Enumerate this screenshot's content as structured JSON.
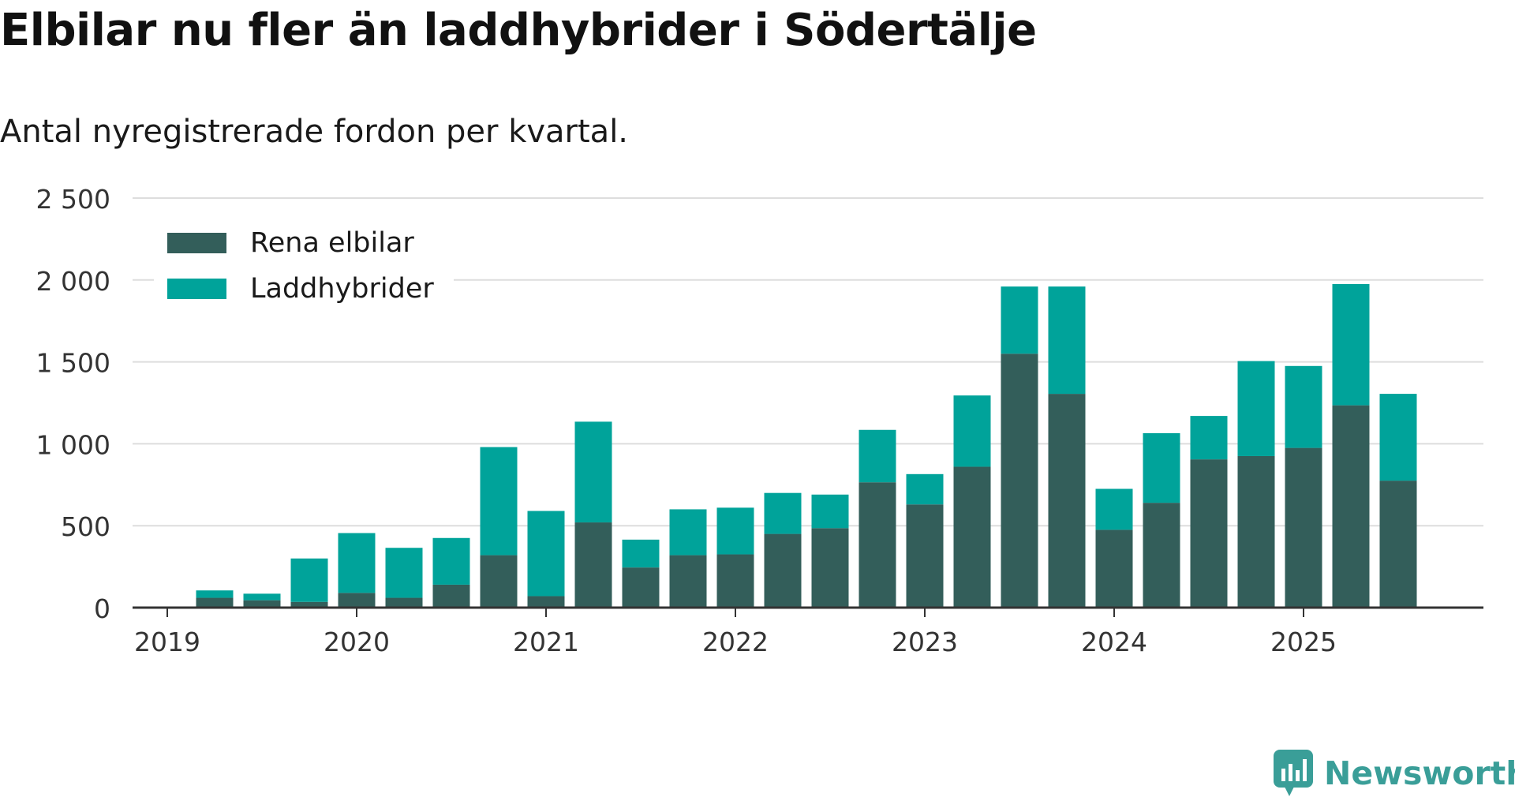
{
  "title": "Elbilar nu fler än laddhybrider i Södertälje",
  "subtitle": "Antal nyregistrerade fordon per kvartal.",
  "brand": "Newsworthy",
  "colors": {
    "electric": "#335e5a",
    "hybrid": "#00a39a",
    "grid": "#dddddd",
    "axis": "#333333",
    "text": "#333333",
    "brand": "#3a9e98"
  },
  "chart_data": {
    "type": "bar",
    "stacked": true,
    "categories": [
      "2019 Q1",
      "2019 Q2",
      "2019 Q3",
      "2019 Q4",
      "2020 Q1",
      "2020 Q2",
      "2020 Q3",
      "2020 Q4",
      "2021 Q1",
      "2021 Q2",
      "2021 Q3",
      "2021 Q4",
      "2022 Q1",
      "2022 Q2",
      "2022 Q3",
      "2022 Q4",
      "2023 Q1",
      "2023 Q2",
      "2023 Q3",
      "2023 Q4",
      "2024 Q1",
      "2024 Q2",
      "2024 Q3",
      "2024 Q4",
      "2025 Q1",
      "2025 Q2",
      "2025 Q3"
    ],
    "series": [
      {
        "name": "Rena elbilar",
        "values": [
          0,
          60,
          45,
          35,
          90,
          60,
          140,
          320,
          70,
          520,
          245,
          320,
          325,
          450,
          485,
          765,
          630,
          860,
          1550,
          1305,
          475,
          640,
          905,
          925,
          975,
          1235,
          775
        ]
      },
      {
        "name": "Laddhybrider",
        "values": [
          0,
          45,
          40,
          265,
          365,
          305,
          285,
          660,
          520,
          615,
          170,
          280,
          285,
          250,
          205,
          320,
          185,
          435,
          410,
          655,
          250,
          425,
          265,
          580,
          500,
          740,
          530
        ]
      }
    ],
    "x_tick_labels": [
      "2019",
      "2020",
      "2021",
      "2022",
      "2023",
      "2024",
      "2025"
    ],
    "y_ticks": [
      0,
      500,
      1000,
      1500,
      2000,
      2500
    ],
    "y_tick_labels": [
      "0",
      "500",
      "1 000",
      "1 500",
      "2 000",
      "2 500"
    ],
    "ylim": [
      0,
      2500
    ],
    "xlabel": "",
    "ylabel": "",
    "legend_position": "top-left"
  }
}
